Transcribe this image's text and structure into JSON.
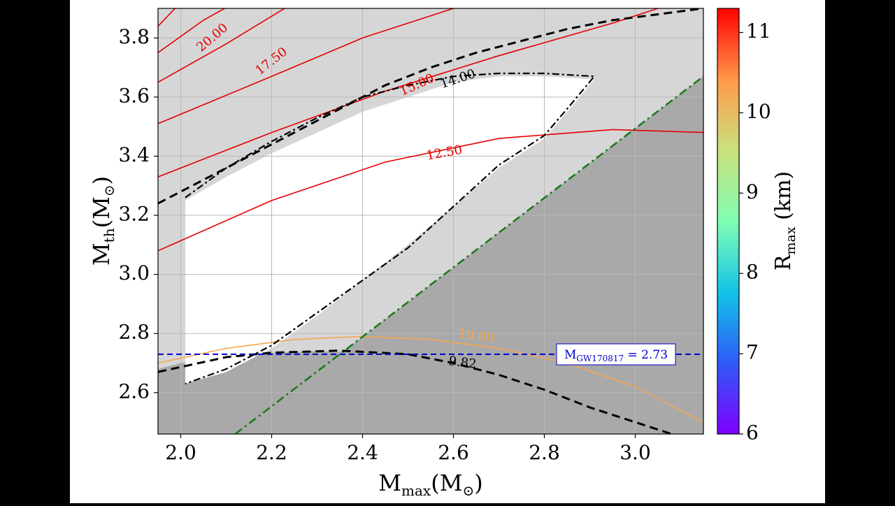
{
  "chart_data": {
    "type": "contour",
    "xlabel_main": "M",
    "xlabel_sub": "max",
    "xlabel_unit": "(M",
    "xlabel_sun": "⊙",
    "xlabel_close": ")",
    "ylabel_main": "M",
    "ylabel_sub": "th",
    "ylabel_unit": "(M",
    "ylabel_sun": "⊙",
    "ylabel_close": ")",
    "xlim": [
      1.95,
      3.15
    ],
    "ylim": [
      2.46,
      3.9
    ],
    "xticks": [
      2.0,
      2.2,
      2.4,
      2.6,
      2.8,
      3.0
    ],
    "xtick_labels": [
      "2.0",
      "2.2",
      "2.4",
      "2.6",
      "2.8",
      "3.0"
    ],
    "yticks": [
      2.6,
      2.8,
      3.0,
      3.2,
      3.4,
      3.6,
      3.8
    ],
    "ytick_labels": [
      "2.6",
      "2.8",
      "3.0",
      "3.2",
      "3.4",
      "3.6",
      "3.8"
    ],
    "grid": true,
    "colors": {
      "region_light": "#d6d6d6",
      "region_dark": "#a9a9a9",
      "allowed_region": "#ffffff",
      "contour_red": "#e60000",
      "contour_orange": "#f5a64f",
      "green_line": "#1d7a1d",
      "blue_line": "#0000cc"
    },
    "allowed_region": [
      [
        2.01,
        3.25
      ],
      [
        2.1,
        3.33
      ],
      [
        2.2,
        3.41
      ],
      [
        2.3,
        3.48
      ],
      [
        2.4,
        3.55
      ],
      [
        2.5,
        3.6
      ],
      [
        2.6,
        3.65
      ],
      [
        2.7,
        3.67
      ],
      [
        2.8,
        3.67
      ],
      [
        2.91,
        3.66
      ],
      [
        2.85,
        3.55
      ],
      [
        2.8,
        3.46
      ],
      [
        2.7,
        3.36
      ],
      [
        2.6,
        3.23
      ],
      [
        2.5,
        3.1
      ],
      [
        2.4,
        2.98
      ],
      [
        2.3,
        2.86
      ],
      [
        2.2,
        2.75
      ],
      [
        2.1,
        2.67
      ],
      [
        2.01,
        2.63
      ],
      [
        2.01,
        3.25
      ]
    ],
    "dark_region_boundary": [
      [
        1.95,
        2.68
      ],
      [
        2.0,
        2.7
      ],
      [
        2.1,
        2.72
      ],
      [
        2.2,
        2.735
      ],
      [
        2.3,
        2.74
      ],
      [
        2.4,
        2.735
      ],
      [
        2.5,
        2.72
      ],
      [
        2.6,
        2.69
      ],
      [
        2.7,
        2.65
      ],
      [
        2.8,
        2.6
      ],
      [
        2.9,
        2.54
      ],
      [
        3.0,
        2.47
      ],
      [
        3.15,
        2.38
      ]
    ],
    "dashed_lower": [
      [
        1.95,
        2.67
      ],
      [
        2.1,
        2.72
      ],
      [
        2.2,
        2.735
      ],
      [
        2.35,
        2.742
      ],
      [
        2.5,
        2.73
      ],
      [
        2.6,
        2.7
      ],
      [
        2.7,
        2.66
      ],
      [
        2.8,
        2.61
      ],
      [
        2.9,
        2.55
      ],
      [
        3.0,
        2.5
      ],
      [
        3.1,
        2.45
      ]
    ],
    "dashed_upper": [
      [
        1.95,
        3.24
      ],
      [
        2.05,
        3.32
      ],
      [
        2.15,
        3.4
      ],
      [
        2.25,
        3.48
      ],
      [
        2.35,
        3.56
      ],
      [
        2.45,
        3.64
      ],
      [
        2.55,
        3.7
      ],
      [
        2.65,
        3.75
      ],
      [
        2.75,
        3.79
      ],
      [
        2.85,
        3.83
      ],
      [
        2.95,
        3.86
      ],
      [
        3.05,
        3.88
      ],
      [
        3.15,
        3.9
      ]
    ],
    "dashdot_boundary": [
      [
        2.01,
        3.26
      ],
      [
        2.1,
        3.36
      ],
      [
        2.2,
        3.45
      ],
      [
        2.3,
        3.53
      ],
      [
        2.4,
        3.6
      ],
      [
        2.5,
        3.64
      ],
      [
        2.6,
        3.67
      ],
      [
        2.7,
        3.68
      ],
      [
        2.8,
        3.68
      ],
      [
        2.91,
        3.67
      ],
      [
        2.85,
        3.56
      ],
      [
        2.8,
        3.47
      ],
      [
        2.7,
        3.37
      ],
      [
        2.6,
        3.23
      ],
      [
        2.5,
        3.09
      ],
      [
        2.4,
        2.98
      ],
      [
        2.3,
        2.87
      ],
      [
        2.2,
        2.76
      ],
      [
        2.1,
        2.68
      ],
      [
        2.01,
        2.63
      ]
    ],
    "green_dashdot": [
      [
        2.12,
        2.46
      ],
      [
        3.15,
        3.67
      ]
    ],
    "gw_line": {
      "y": 2.73,
      "label_main": "M",
      "label_sub": "GW170817",
      "label_rest": " = 2.73"
    },
    "red_contours": [
      {
        "label": "20.00",
        "points": [
          [
            1.95,
            3.84
          ],
          [
            2.0,
            3.92
          ]
        ]
      },
      {
        "label": "20.00",
        "points": [
          [
            1.95,
            3.75
          ],
          [
            2.05,
            3.86
          ],
          [
            2.12,
            3.92
          ]
        ]
      },
      {
        "label": "17.50",
        "points": [
          [
            1.95,
            3.65
          ],
          [
            2.1,
            3.78
          ],
          [
            2.25,
            3.92
          ]
        ]
      },
      {
        "label": "15.00",
        "points": [
          [
            1.95,
            3.51
          ],
          [
            2.2,
            3.67
          ],
          [
            2.4,
            3.8
          ],
          [
            2.6,
            3.9
          ]
        ]
      },
      {
        "label": "",
        "points": [
          [
            1.95,
            3.33
          ],
          [
            2.2,
            3.48
          ],
          [
            2.45,
            3.62
          ],
          [
            2.7,
            3.74
          ],
          [
            2.95,
            3.85
          ],
          [
            3.05,
            3.9
          ]
        ]
      },
      {
        "label": "12.50",
        "points": [
          [
            1.95,
            3.08
          ],
          [
            2.2,
            3.25
          ],
          [
            2.45,
            3.38
          ],
          [
            2.7,
            3.46
          ],
          [
            2.95,
            3.49
          ],
          [
            3.15,
            3.48
          ]
        ]
      }
    ],
    "contour_labels": [
      {
        "text": "20.00",
        "x": 2.07,
        "y": 3.8,
        "color": "red",
        "rot": -40
      },
      {
        "text": "17.50",
        "x": 2.2,
        "y": 3.72,
        "color": "red",
        "rot": -38
      },
      {
        "text": "15.00",
        "x": 2.52,
        "y": 3.64,
        "color": "red",
        "rot": -24
      },
      {
        "text": "12.50",
        "x": 2.58,
        "y": 3.41,
        "color": "red",
        "rot": -10
      },
      {
        "text": "14.00",
        "x": 2.61,
        "y": 3.66,
        "color": "black",
        "rot": -18
      },
      {
        "text": "10.00",
        "x": 2.65,
        "y": 2.79,
        "color": "orange",
        "rot": 8
      },
      {
        "text": "9.82",
        "x": 2.62,
        "y": 2.7,
        "color": "black",
        "rot": 7
      }
    ],
    "orange_contour": [
      [
        1.95,
        2.7
      ],
      [
        2.1,
        2.75
      ],
      [
        2.25,
        2.78
      ],
      [
        2.4,
        2.79
      ],
      [
        2.55,
        2.78
      ],
      [
        2.7,
        2.75
      ],
      [
        2.85,
        2.7
      ],
      [
        3.0,
        2.62
      ],
      [
        3.15,
        2.5
      ]
    ],
    "colorbar": {
      "label_main": "R",
      "label_sub": "max",
      "label_rest": " (km)",
      "min": 6,
      "max": 11.3,
      "ticks": [
        6,
        7,
        8,
        9,
        10,
        11
      ],
      "tick_labels": [
        "6",
        "7",
        "8",
        "9",
        "10",
        "11"
      ],
      "cmap": "rainbow"
    }
  }
}
